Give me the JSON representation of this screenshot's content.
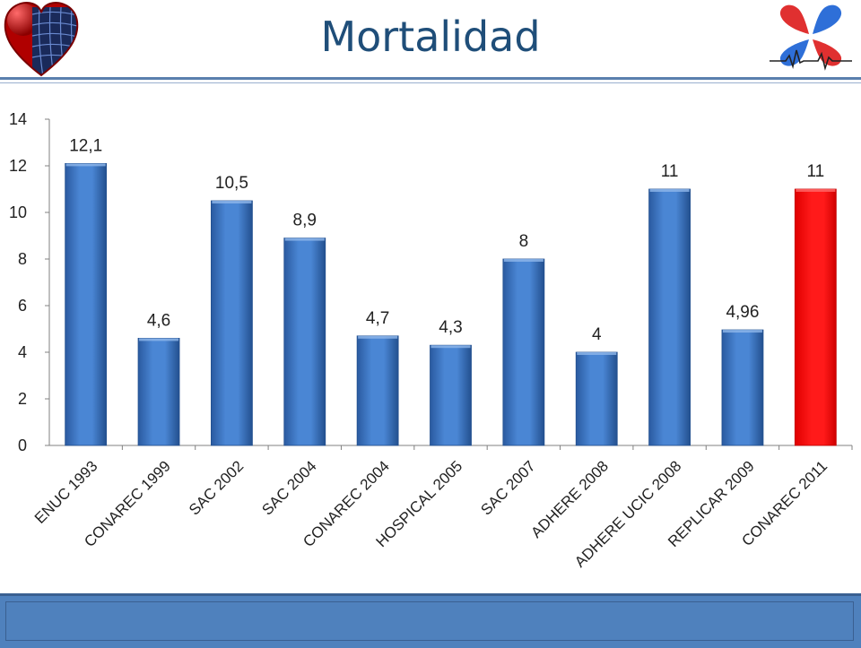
{
  "page": {
    "title": "Mortalidad"
  },
  "colors": {
    "bar_default": "#3b73c0",
    "bar_highlight": "#ff0000",
    "axis": "#808080",
    "title": "#1f4e79",
    "band": "#4f81bd"
  },
  "icons": {
    "left_logo": "globe-heart-icon",
    "right_logo": "heart-ecg-icon"
  },
  "chart_data": {
    "type": "bar",
    "title": "",
    "xlabel": "",
    "ylabel": "",
    "ylim": [
      0,
      14
    ],
    "yticks": [
      "0",
      "2",
      "4",
      "6",
      "8",
      "10",
      "12",
      "14"
    ],
    "categories": [
      "ENUC 1993",
      "CONAREC 1999",
      "SAC 2002",
      "SAC 2004",
      "CONAREC 2004",
      "HOSPICAL 2005",
      "SAC 2007",
      "ADHERE 2008",
      "ADHERE UCIC 2008",
      "REPLICAR 2009",
      "CONAREC 2011"
    ],
    "values": [
      12.1,
      4.6,
      10.5,
      8.9,
      4.7,
      4.3,
      8,
      4,
      11,
      4.96,
      11
    ],
    "data_labels": [
      "12,1",
      "4,6",
      "10,5",
      "8,9",
      "4,7",
      "4,3",
      "8",
      "4",
      "11",
      "4,96",
      "11"
    ],
    "highlight_index": 10,
    "grid": false,
    "legend": "none"
  }
}
